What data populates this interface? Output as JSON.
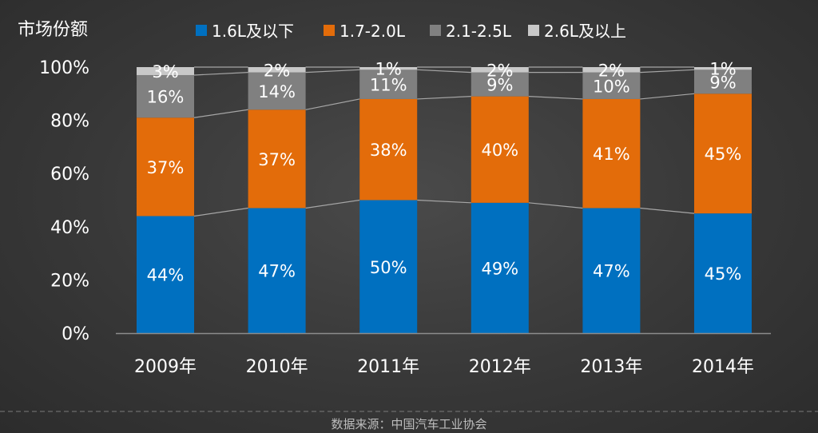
{
  "chart_data": {
    "type": "bar",
    "stacked": true,
    "ylabel": "市场份额",
    "ylim": [
      0,
      100
    ],
    "yticks": [
      "0%",
      "20%",
      "40%",
      "60%",
      "80%",
      "100%"
    ],
    "categories": [
      "2009年",
      "2010年",
      "2011年",
      "2012年",
      "2013年",
      "2014年"
    ],
    "series": [
      {
        "name": "1.6L及以下",
        "color": "#0070c0",
        "values": [
          44,
          47,
          50,
          49,
          47,
          45
        ],
        "labels": [
          "44%",
          "47%",
          "50%",
          "49%",
          "47%",
          "45%"
        ]
      },
      {
        "name": "1.7-2.0L",
        "color": "#e36c0a",
        "values": [
          37,
          37,
          38,
          40,
          41,
          45
        ],
        "labels": [
          "37%",
          "37%",
          "38%",
          "40%",
          "41%",
          "45%"
        ]
      },
      {
        "name": "2.1-2.5L",
        "color": "#808080",
        "values": [
          16,
          14,
          11,
          9,
          10,
          9
        ],
        "labels": [
          "16%",
          "14%",
          "11%",
          "9%",
          "10%",
          "9%"
        ]
      },
      {
        "name": "2.6L及以上",
        "color": "#c8c8c8",
        "values": [
          3,
          2,
          1,
          2,
          2,
          1
        ],
        "labels": [
          "3%",
          "2%",
          "1%",
          "2%",
          "2%",
          "1%"
        ]
      }
    ],
    "legend_position": "top",
    "series_lines": true
  },
  "source": "数据来源：中国汽车工业协会"
}
